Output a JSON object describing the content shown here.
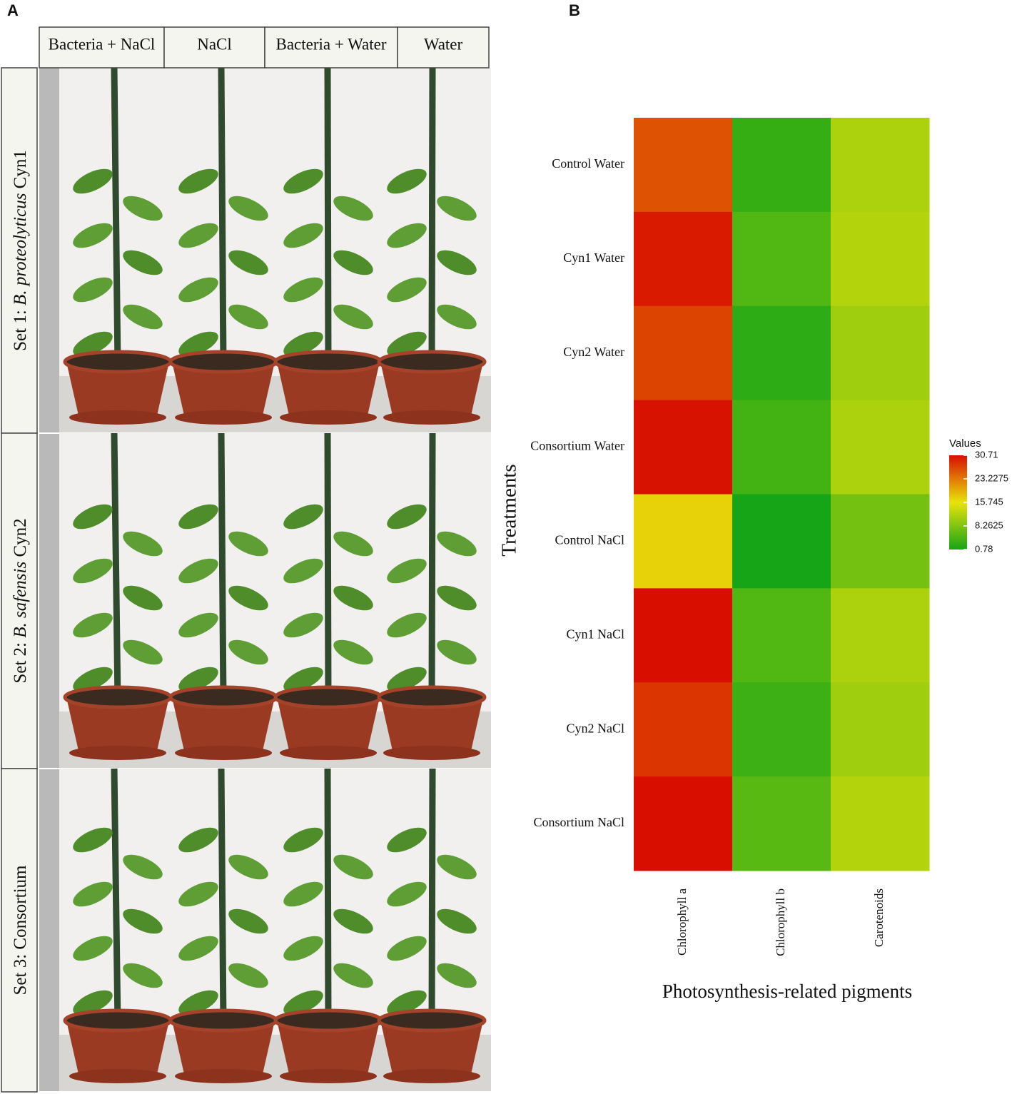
{
  "panel_a": {
    "label": "A",
    "columns": [
      "Bacteria + NaCl",
      "NaCl",
      "Bacteria + Water",
      "Water"
    ],
    "rows": [
      {
        "prefix": "Set 1: ",
        "species": "B. proteolyticus",
        "suffix": " Cyn1"
      },
      {
        "prefix": "Set 2: ",
        "species": "B. safensis",
        "suffix": " Cyn2"
      },
      {
        "prefix": "Set 3: Consortium"
      }
    ]
  },
  "chart_data": {
    "type": "heatmap",
    "panel_label": "B",
    "xlabel": "Photosynthesis-related pigments",
    "ylabel": "Treatments",
    "columns": [
      "Chlorophyll a",
      "Chlorophyll b",
      "Carotenoids"
    ],
    "rows": [
      "Control Water",
      "Cyn1 Water",
      "Cyn2 Water",
      "Consortium Water",
      "Control NaCl",
      "Cyn1 NaCl",
      "Cyn2 NaCl",
      "Consortium NaCl"
    ],
    "values": [
      [
        26,
        3,
        11.5
      ],
      [
        30,
        5,
        12
      ],
      [
        27,
        2.5,
        10.5
      ],
      [
        30.5,
        4,
        11.5
      ],
      [
        17,
        0.78,
        7.5
      ],
      [
        30.7,
        5,
        11.5
      ],
      [
        28,
        3.5,
        10.5
      ],
      [
        30.7,
        5.5,
        12
      ]
    ],
    "colorbar": {
      "title": "Values",
      "lim": [
        0.78,
        30.71
      ],
      "ticks": [
        30.71,
        23.2275,
        15.745,
        8.2625,
        0.78
      ],
      "colors": [
        "#16a516",
        "#e8e40a",
        "#d80f00"
      ]
    }
  }
}
